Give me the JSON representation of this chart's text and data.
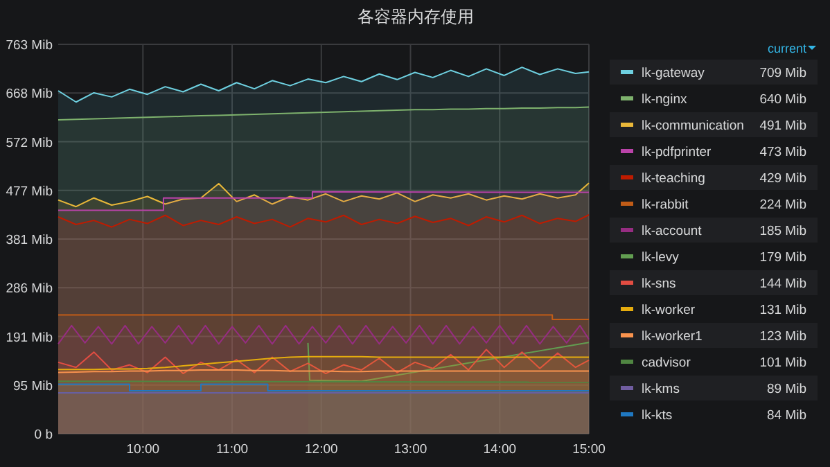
{
  "chart_data": {
    "type": "area",
    "title": "各容器内存使用",
    "legend_title": "current",
    "legend": "right",
    "grid": true,
    "xlim": [
      9.05,
      15.0
    ],
    "xticks": [
      {
        "value": 10,
        "label": "10:00"
      },
      {
        "value": 11,
        "label": "11:00"
      },
      {
        "value": 12,
        "label": "12:00"
      },
      {
        "value": 13,
        "label": "13:00"
      },
      {
        "value": 14,
        "label": "14:00"
      },
      {
        "value": 15,
        "label": "15:00"
      }
    ],
    "ylim": [
      0,
      763
    ],
    "yticks": [
      {
        "value": 0,
        "label": "0 b"
      },
      {
        "value": 95.375,
        "label": "95 Mib"
      },
      {
        "value": 190.75,
        "label": "191 Mib"
      },
      {
        "value": 286.125,
        "label": "286 Mib"
      },
      {
        "value": 381.5,
        "label": "381 Mib"
      },
      {
        "value": 476.875,
        "label": "477 Mib"
      },
      {
        "value": 572.25,
        "label": "572 Mib"
      },
      {
        "value": 667.625,
        "label": "668 Mib"
      },
      {
        "value": 763,
        "label": "763 Mib"
      }
    ],
    "x": [
      9.05,
      9.25,
      9.45,
      9.65,
      9.85,
      10.05,
      10.25,
      10.45,
      10.65,
      10.85,
      11.05,
      11.25,
      11.45,
      11.65,
      11.85,
      12.05,
      12.25,
      12.45,
      12.65,
      12.85,
      13.05,
      13.25,
      13.45,
      13.65,
      13.85,
      14.05,
      14.25,
      14.45,
      14.65,
      14.85,
      15.0
    ],
    "annotations": [
      "709 Mib",
      "640 Mib",
      "491 Mib",
      "473 Mib",
      "429 Mib",
      "224 Mib",
      "185 Mib",
      "179 Mib",
      "144 Mib",
      "131 Mib",
      "123 Mib",
      "101 Mib",
      "89 Mib",
      "84 Mib"
    ],
    "series": [
      {
        "name": "lk-gateway",
        "color": "#6ed0e0",
        "values": [
          672,
          650,
          668,
          660,
          675,
          665,
          680,
          670,
          685,
          672,
          688,
          676,
          692,
          682,
          695,
          688,
          700,
          690,
          705,
          694,
          708,
          698,
          712,
          700,
          715,
          702,
          718,
          704,
          715,
          706,
          709
        ]
      },
      {
        "name": "lk-nginx",
        "color": "#7eb26d",
        "values": [
          615,
          616,
          617,
          618,
          619,
          620,
          621,
          622,
          623,
          624,
          625,
          626,
          627,
          628,
          629,
          630,
          631,
          632,
          633,
          634,
          635,
          635,
          636,
          636,
          637,
          637,
          638,
          638,
          639,
          639,
          640
        ]
      },
      {
        "name": "lk-communication",
        "color": "#eab839",
        "values": [
          458,
          445,
          462,
          448,
          455,
          465,
          450,
          460,
          462,
          490,
          455,
          468,
          450,
          465,
          458,
          470,
          455,
          466,
          460,
          472,
          455,
          468,
          462,
          470,
          458,
          466,
          460,
          470,
          462,
          468,
          491
        ]
      },
      {
        "name": "lk-pdfprinter",
        "color": "#ba43a9",
        "x": [
          9.05,
          10.23,
          10.23,
          11.9,
          11.9,
          15.0
        ],
        "values": [
          438,
          438,
          462,
          462,
          474,
          473
        ]
      },
      {
        "name": "lk-teaching",
        "color": "#bf1b00",
        "values": [
          425,
          410,
          418,
          405,
          420,
          412,
          428,
          408,
          418,
          410,
          425,
          412,
          420,
          405,
          422,
          415,
          428,
          410,
          420,
          412,
          426,
          414,
          422,
          408,
          425,
          415,
          428,
          412,
          422,
          416,
          429
        ]
      },
      {
        "name": "lk-rabbit",
        "color": "#c15c17",
        "x": [
          9.05,
          14.59,
          14.59,
          15.0
        ],
        "values": [
          233,
          233,
          224,
          224
        ]
      },
      {
        "name": "lk-account",
        "color": "#962d82",
        "x": [
          9.05,
          9.2,
          9.35,
          9.5,
          9.65,
          9.8,
          9.95,
          10.1,
          10.25,
          10.4,
          10.55,
          10.7,
          10.85,
          11.0,
          11.15,
          11.3,
          11.45,
          11.6,
          11.75,
          11.9,
          12.05,
          12.2,
          12.35,
          12.5,
          12.65,
          12.8,
          12.95,
          13.1,
          13.25,
          13.4,
          13.55,
          13.7,
          13.85,
          14.0,
          14.15,
          14.3,
          14.45,
          14.6,
          14.75,
          14.9,
          15.0
        ],
        "values": [
          176,
          212,
          178,
          210,
          176,
          212,
          176,
          210,
          178,
          212,
          176,
          212,
          176,
          210,
          178,
          212,
          176,
          212,
          176,
          210,
          178,
          212,
          176,
          212,
          176,
          210,
          178,
          212,
          176,
          212,
          176,
          210,
          178,
          212,
          176,
          212,
          176,
          210,
          178,
          212,
          185
        ]
      },
      {
        "name": "lk-levy",
        "color": "#629e51",
        "x": [
          11.85,
          11.87,
          12.45,
          15.0
        ],
        "values": [
          178,
          105,
          103,
          179
        ]
      },
      {
        "name": "lk-sns",
        "color": "#e24d42",
        "values": [
          140,
          130,
          160,
          125,
          135,
          120,
          150,
          118,
          140,
          125,
          145,
          120,
          150,
          122,
          138,
          118,
          135,
          125,
          148,
          120,
          140,
          128,
          155,
          125,
          165,
          130,
          160,
          128,
          158,
          130,
          144
        ]
      },
      {
        "name": "lk-worker",
        "color": "#e5ac0e",
        "values": [
          126,
          126,
          126,
          127,
          127,
          128,
          130,
          133,
          136,
          139,
          142,
          145,
          148,
          150,
          151,
          151,
          151,
          151,
          150,
          150,
          150,
          150,
          150,
          150,
          150,
          150,
          150,
          150,
          150,
          150,
          150
        ]
      },
      {
        "name": "lk-worker1",
        "color": "#f9934e",
        "values": [
          120,
          121,
          122,
          122,
          123,
          123,
          124,
          124,
          125,
          125,
          125,
          124,
          124,
          123,
          123,
          123,
          122,
          122,
          123,
          123,
          123,
          123,
          123,
          123,
          123,
          123,
          123,
          123,
          123,
          123,
          123
        ]
      },
      {
        "name": "cadvisor",
        "color": "#508642",
        "x": [
          9.05,
          15.0
        ],
        "values": [
          103,
          101
        ]
      },
      {
        "name": "lk-kms",
        "color": "#705da0",
        "x": [
          9.05,
          15.0
        ],
        "values": [
          80,
          80
        ]
      },
      {
        "name": "lk-kts",
        "color": "#1f78c1",
        "x": [
          9.05,
          9.85,
          9.85,
          10.65,
          10.65,
          11.4,
          11.4,
          15.0
        ],
        "values": [
          97,
          97,
          84,
          84,
          97,
          97,
          84,
          84
        ]
      }
    ]
  }
}
